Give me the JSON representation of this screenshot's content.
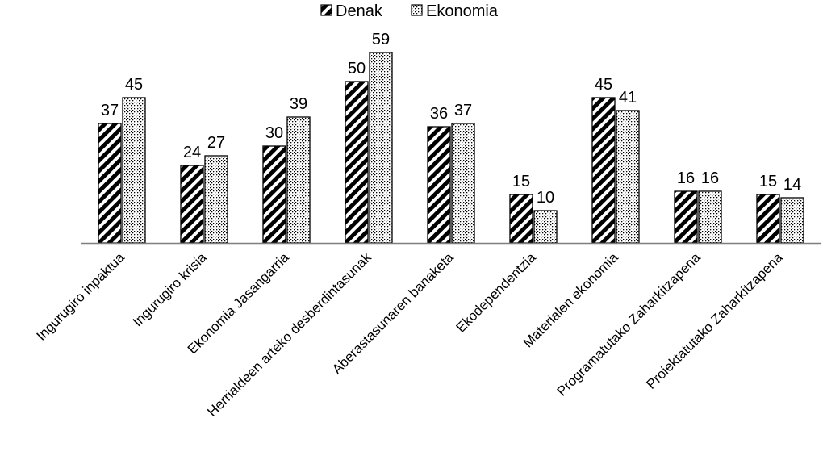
{
  "chart_data": {
    "type": "bar",
    "categories": [
      "Ingurugiro inpaktua",
      "Ingurugiro krisia",
      "Ekonomia Jasangarria",
      "Herrialdeen arteko desberdintasunak",
      "Aberastasunaren banaketa",
      "Ekodependentzia",
      "Materialen ekonomia",
      "Programatutako Zaharkitzapena",
      "Proiektatutako Zaharkitzapena"
    ],
    "series": [
      {
        "name": "Denak",
        "values": [
          37,
          24,
          30,
          50,
          36,
          15,
          45,
          16,
          15
        ],
        "pattern": "diagonal-hatch"
      },
      {
        "name": "Ekonomia",
        "values": [
          45,
          27,
          39,
          59,
          37,
          10,
          41,
          16,
          14
        ],
        "pattern": "dotted"
      }
    ],
    "title": "",
    "xlabel": "",
    "ylabel": "",
    "ylim": [
      0,
      60
    ],
    "legend_position": "top-center",
    "grid": false,
    "axis_color": "#7f7f7f",
    "bar_outline_color": "#000000"
  }
}
